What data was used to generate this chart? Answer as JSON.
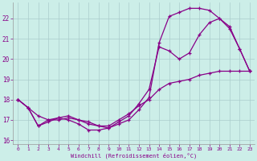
{
  "bg_color": "#cceee8",
  "line_color": "#880088",
  "grid_color": "#aacccc",
  "xlabel": "Windchill (Refroidissement éolien,°C)",
  "xlim": [
    -0.5,
    23.5
  ],
  "ylim": [
    15.8,
    22.8
  ],
  "yticks": [
    16,
    17,
    18,
    19,
    20,
    21,
    22
  ],
  "xticks": [
    0,
    1,
    2,
    3,
    4,
    5,
    6,
    7,
    8,
    9,
    10,
    11,
    12,
    13,
    14,
    15,
    16,
    17,
    18,
    19,
    20,
    21,
    22,
    23
  ],
  "c1_x": [
    0,
    1,
    2,
    3,
    4,
    5,
    6,
    7,
    8,
    9,
    10,
    11,
    12,
    13,
    14,
    15,
    16,
    17,
    18,
    19,
    20,
    21,
    22,
    23
  ],
  "c1_y": [
    18.0,
    17.6,
    16.7,
    17.0,
    17.1,
    17.0,
    16.8,
    16.5,
    16.5,
    16.6,
    16.8,
    17.0,
    17.5,
    18.1,
    20.8,
    22.1,
    22.3,
    22.5,
    22.5,
    22.4,
    22.0,
    21.5,
    20.5,
    19.4
  ],
  "c2_x": [
    0,
    1,
    2,
    3,
    4,
    5,
    6,
    7,
    8,
    9,
    10,
    11,
    12,
    13,
    14,
    15,
    16,
    17,
    18,
    19,
    20,
    21,
    22,
    23
  ],
  "c2_y": [
    18.0,
    17.6,
    16.7,
    16.9,
    17.1,
    17.2,
    17.0,
    16.8,
    16.7,
    16.6,
    16.9,
    17.2,
    17.8,
    18.5,
    20.6,
    20.4,
    20.0,
    20.3,
    21.2,
    21.8,
    22.0,
    21.6,
    20.5,
    19.4
  ],
  "c3_x": [
    0,
    1,
    2,
    3,
    4,
    5,
    6,
    7,
    8,
    9,
    10,
    11,
    12,
    13,
    14,
    15,
    16,
    17,
    18,
    19,
    20,
    21,
    22,
    23
  ],
  "c3_y": [
    18.0,
    17.6,
    17.2,
    17.0,
    17.0,
    17.1,
    17.0,
    16.9,
    16.7,
    16.7,
    17.0,
    17.3,
    17.7,
    18.0,
    18.5,
    18.8,
    18.9,
    19.0,
    19.2,
    19.3,
    19.4,
    19.4,
    19.4,
    19.4
  ]
}
